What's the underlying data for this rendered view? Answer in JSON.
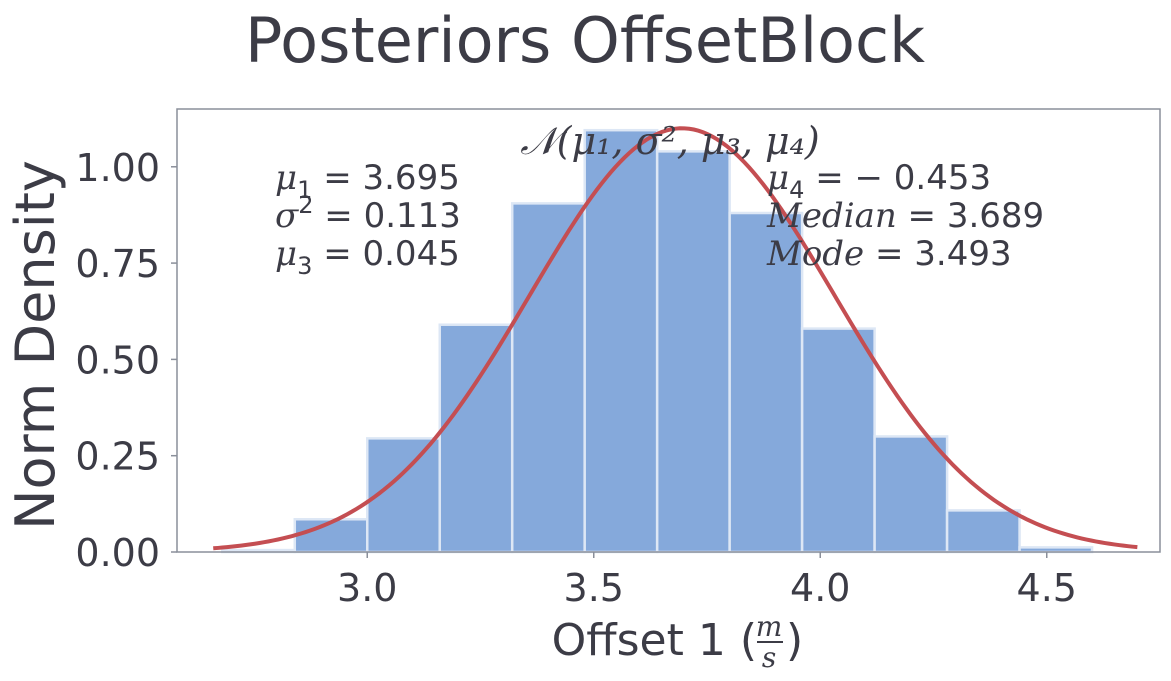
{
  "colors": {
    "text": "#3c3c46",
    "bar_fill": "#85a9db",
    "bar_edge": "#dde7f5",
    "curve": "#c44e52",
    "axes_edge": "#8a8f9a"
  },
  "chart_data": {
    "type": "bar",
    "title": "Posteriors OffsetBlock",
    "xlabel_prefix": "Offset 1 (",
    "xlabel_num": "m",
    "xlabel_den": "s",
    "xlabel_suffix": ")",
    "ylabel": "Norm Density",
    "xlim": [
      2.58,
      4.75
    ],
    "ylim": [
      0,
      1.15
    ],
    "xticks": [
      3.0,
      3.5,
      4.0,
      4.5
    ],
    "xtick_labels": [
      "3.0",
      "3.5",
      "4.0",
      "4.5"
    ],
    "yticks": [
      0.0,
      0.25,
      0.5,
      0.75,
      1.0
    ],
    "ytick_labels": [
      "0.00",
      "0.25",
      "0.50",
      "0.75",
      "1.00"
    ],
    "grid": false,
    "histogram": {
      "bin_edges": [
        2.68,
        2.84,
        3.0,
        3.16,
        3.32,
        3.48,
        3.64,
        3.8,
        3.96,
        4.12,
        4.28,
        4.44,
        4.6,
        4.76
      ],
      "values": [
        0.005,
        0.085,
        0.295,
        0.59,
        0.905,
        1.095,
        1.04,
        0.88,
        0.58,
        0.3,
        0.108,
        0.012,
        0.0
      ]
    },
    "fit_curve": {
      "distribution": "normal",
      "mean": 3.695,
      "variance": 0.113,
      "peak_density": 1.1,
      "x_range": [
        2.66,
        4.7
      ]
    },
    "annotations": {
      "formula": "𝒩(μ₁, σ², μ₃, μ₄)",
      "left": [
        {
          "sym": "μ",
          "sub": "1",
          "sup": "",
          "text": " = 3.695"
        },
        {
          "sym": "σ",
          "sub": "",
          "sup": "2",
          "text": " = 0.113"
        },
        {
          "sym": "μ",
          "sub": "3",
          "sup": "",
          "text": " = 0.045"
        }
      ],
      "right": [
        {
          "sym": "μ",
          "sub": "4",
          "sup": "",
          "text": " = − 0.453"
        },
        {
          "sym": "Median",
          "sub": "",
          "sup": "",
          "text": " = 3.689"
        },
        {
          "sym": "Mode",
          "sub": "",
          "sup": "",
          "text": " = 3.493"
        }
      ]
    }
  }
}
